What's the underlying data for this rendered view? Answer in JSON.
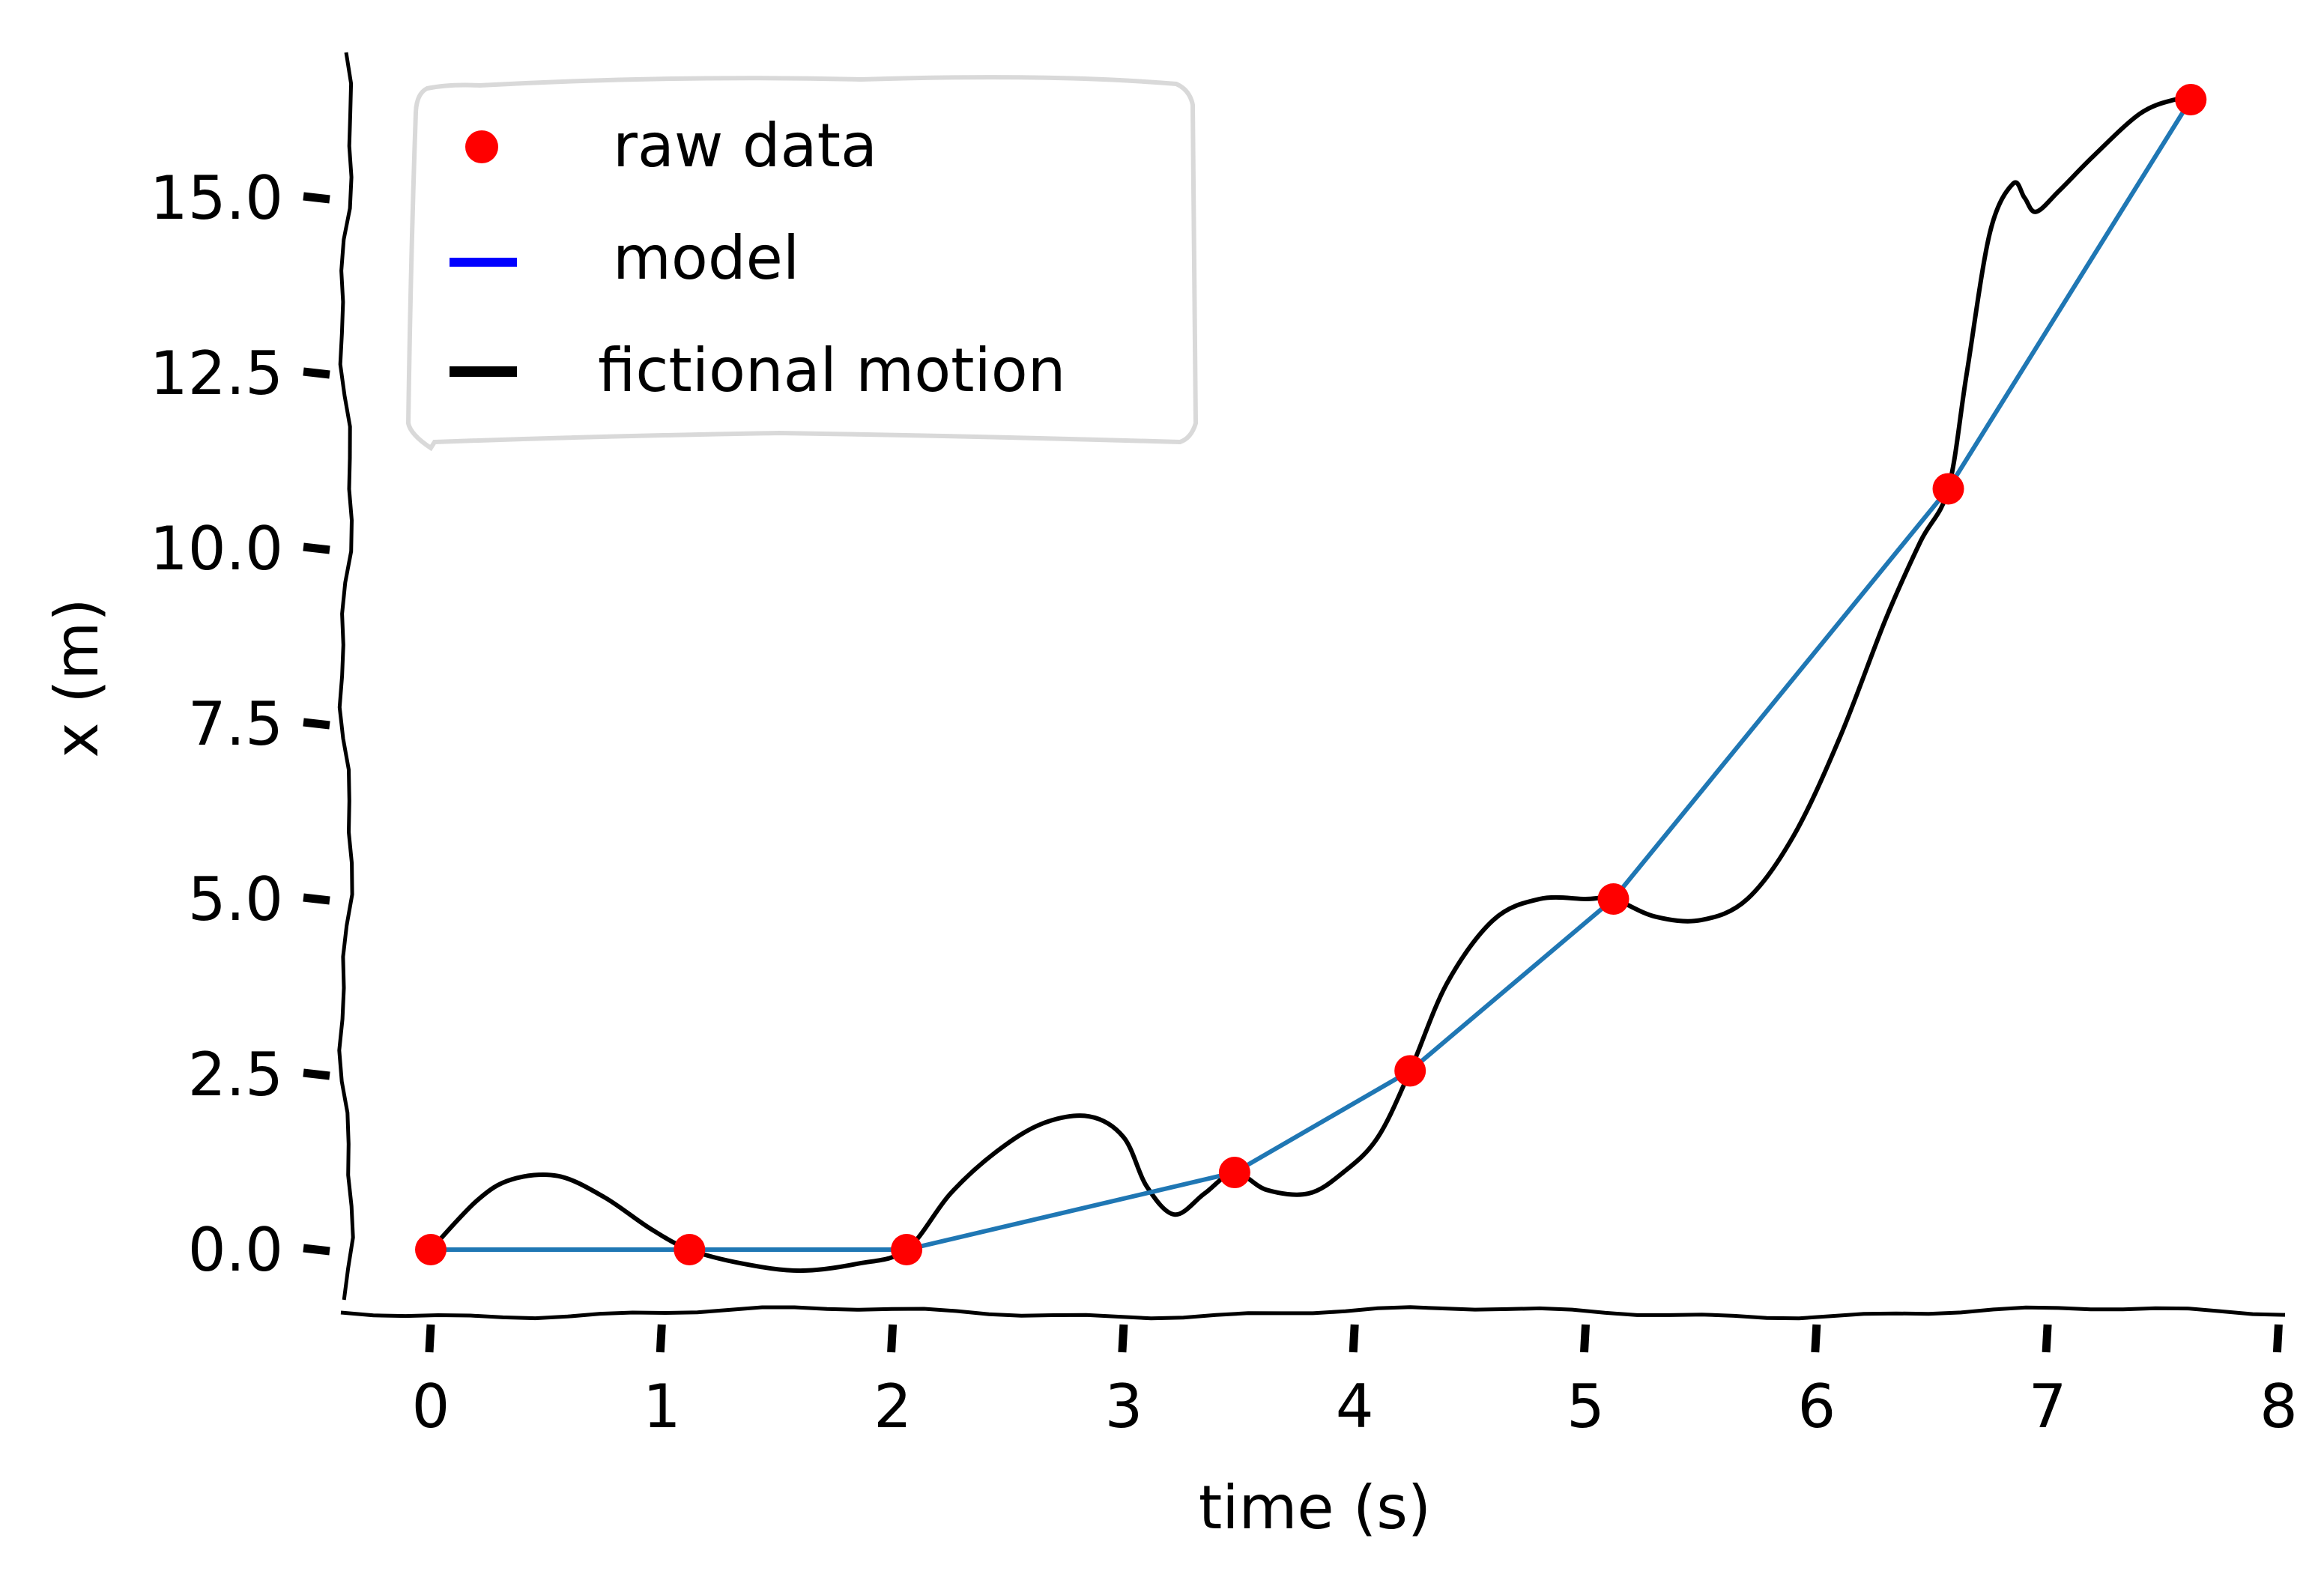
{
  "chart_data": {
    "type": "line",
    "style": "xkcd",
    "title": "",
    "xlabel": "time (s)",
    "ylabel": "x (m)",
    "xlim": [
      -0.4,
      8.0
    ],
    "ylim": [
      -0.7,
      17.0
    ],
    "xticks": [
      0,
      1,
      2,
      3,
      4,
      5,
      6,
      7,
      8
    ],
    "yticks": [
      0.0,
      2.5,
      5.0,
      7.5,
      10.0,
      12.5,
      15.0
    ],
    "ytick_labels": [
      "0.0",
      "2.5",
      "5.0",
      "7.5",
      "10.0",
      "12.5",
      "15.0"
    ],
    "grid": false,
    "legend_position": "upper-left",
    "legend": [
      {
        "label": "raw data",
        "marker": "circle",
        "color": "#ff0000"
      },
      {
        "label": "model",
        "marker": "line",
        "color": "#0000ff"
      },
      {
        "label": "fictional motion",
        "marker": "line",
        "color": "#000000"
      }
    ],
    "series": [
      {
        "name": "raw data",
        "kind": "scatter",
        "color": "#ff0000",
        "x": [
          0.0,
          1.12,
          2.06,
          3.48,
          4.24,
          5.12,
          6.57,
          7.62
        ],
        "y": [
          0.0,
          0.0,
          0.0,
          1.1,
          2.55,
          5.0,
          10.85,
          16.4
        ]
      },
      {
        "name": "model",
        "kind": "line",
        "color": "#1f77b4",
        "x": [
          0.0,
          1.12,
          2.06,
          3.48,
          4.24,
          5.12,
          6.57,
          7.62
        ],
        "y": [
          0.0,
          0.0,
          0.0,
          1.1,
          2.55,
          5.0,
          10.85,
          16.4
        ]
      },
      {
        "name": "fictional motion",
        "kind": "line",
        "color": "#000000",
        "x": [
          0.0,
          0.2,
          0.35,
          0.55,
          0.75,
          0.95,
          1.12,
          1.35,
          1.6,
          1.85,
          2.06,
          2.25,
          2.45,
          2.65,
          2.85,
          3.0,
          3.1,
          3.22,
          3.35,
          3.48,
          3.62,
          3.8,
          3.95,
          4.1,
          4.24,
          4.4,
          4.6,
          4.8,
          5.0,
          5.12,
          5.3,
          5.5,
          5.7,
          5.9,
          6.1,
          6.3,
          6.45,
          6.57,
          6.65,
          6.75,
          6.85,
          6.9,
          6.95,
          7.05,
          7.2,
          7.4,
          7.55,
          7.62
        ],
        "y": [
          0.0,
          0.7,
          1.0,
          1.05,
          0.75,
          0.3,
          0.0,
          -0.2,
          -0.3,
          -0.2,
          0.0,
          0.8,
          1.4,
          1.8,
          1.9,
          1.6,
          0.9,
          0.5,
          0.8,
          1.1,
          0.85,
          0.8,
          1.1,
          1.6,
          2.55,
          3.8,
          4.7,
          5.0,
          5.0,
          5.0,
          4.75,
          4.7,
          5.0,
          5.9,
          7.3,
          9.0,
          10.1,
          10.85,
          12.5,
          14.5,
          15.2,
          15.0,
          14.8,
          15.1,
          15.6,
          16.2,
          16.4,
          16.4
        ]
      }
    ]
  }
}
